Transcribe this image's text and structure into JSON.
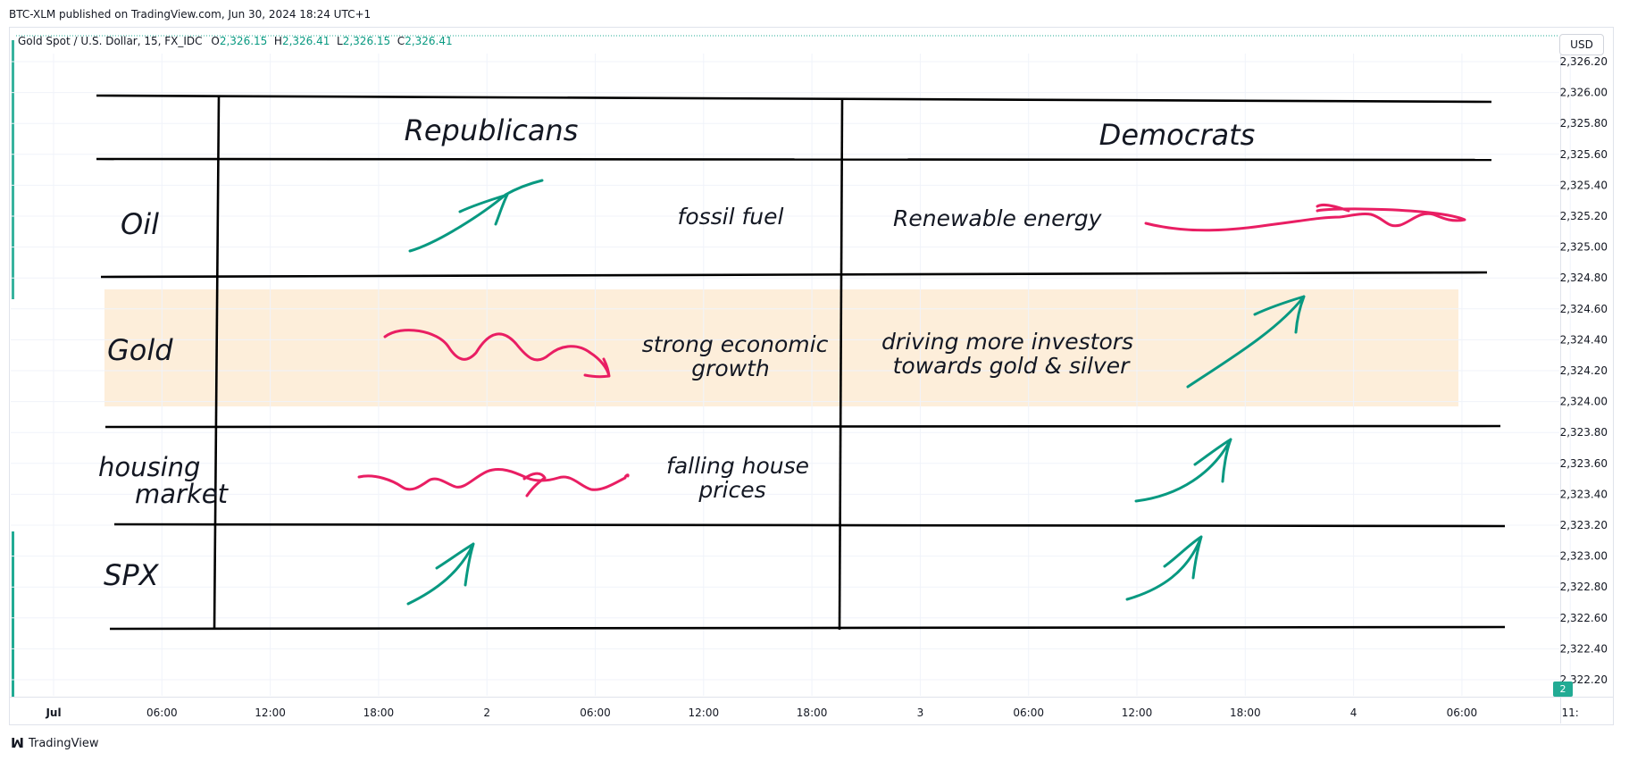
{
  "header": {
    "published": "BTC-XLM published on TradingView.com, Jun 30, 2024 18:24 UTC+1"
  },
  "legend": {
    "symbol": "Gold Spot / U.S. Dollar, 15, FX_IDC",
    "o_label": "O",
    "o_value": "2,326.15",
    "h_label": "H",
    "h_value": "2,326.41",
    "l_label": "L",
    "l_value": "2,326.15",
    "c_label": "C",
    "c_value": "2,326.41"
  },
  "currency": "USD",
  "footer": {
    "brand": "TradingView"
  },
  "badge": "2",
  "colors": {
    "up": "#089981",
    "down": "#e91e63",
    "highlight": "#fdebd3",
    "grid": "#f0f3fa"
  },
  "chart_data": {
    "type": "table",
    "price_axis": [
      "2,326.20",
      "2,326.00",
      "2,325.80",
      "2,325.60",
      "2,325.40",
      "2,325.20",
      "2,325.00",
      "2,324.80",
      "2,324.60",
      "2,324.40",
      "2,324.20",
      "2,324.00",
      "2,323.80",
      "2,323.60",
      "2,323.40",
      "2,323.20",
      "2,323.00",
      "2,322.80",
      "2,322.60",
      "2,322.40",
      "2,322.20"
    ],
    "time_axis": [
      "Jul",
      "06:00",
      "12:00",
      "18:00",
      "2",
      "06:00",
      "12:00",
      "18:00",
      "3",
      "06:00",
      "12:00",
      "18:00",
      "4",
      "06:00",
      "11:"
    ],
    "columns": [
      "Republicans",
      "Democrats"
    ],
    "rows": [
      {
        "label": "Oil",
        "rep_note": "fossil fuel",
        "dem_note": "Renewable energy",
        "rep_trend": "up",
        "dem_trend": "sideways"
      },
      {
        "label": "Gold",
        "rep_note": "strong economic growth",
        "dem_note": "driving more investors towards gold & silver",
        "rep_trend": "down",
        "dem_trend": "up"
      },
      {
        "label": "housing market",
        "rep_note": "falling house prices",
        "dem_note": "",
        "rep_trend": "sideways",
        "dem_trend": "up"
      },
      {
        "label": "SPX",
        "rep_note": "",
        "dem_note": "",
        "rep_trend": "up",
        "dem_trend": "up"
      }
    ]
  }
}
